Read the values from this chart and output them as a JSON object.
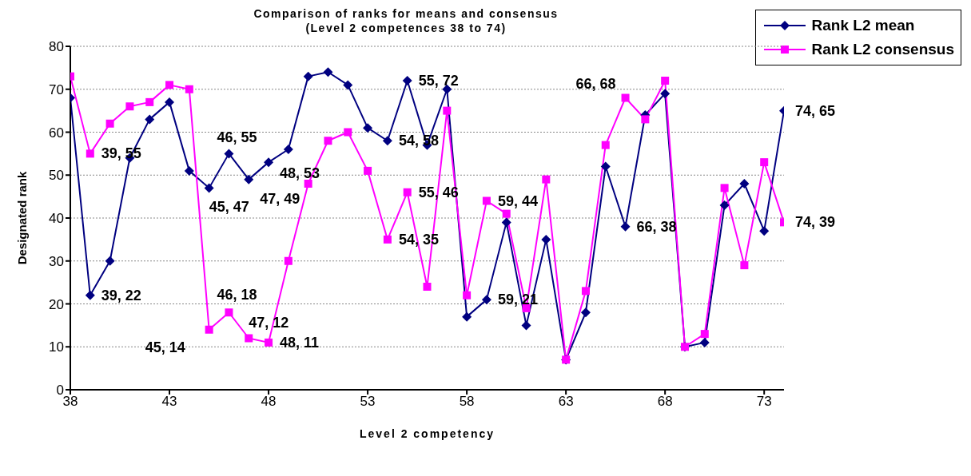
{
  "chart_data": {
    "type": "line",
    "title": "Comparison of ranks for means and consensus",
    "subtitle": "(Level 2 competences 38 to 74)",
    "xlabel": "Level 2 competency",
    "ylabel": "Designated rank",
    "x": [
      38,
      39,
      40,
      41,
      42,
      43,
      44,
      45,
      46,
      47,
      48,
      49,
      50,
      51,
      52,
      53,
      54,
      55,
      56,
      57,
      58,
      59,
      60,
      61,
      62,
      63,
      64,
      65,
      66,
      67,
      68,
      69,
      70,
      71,
      72,
      73,
      74
    ],
    "series": [
      {
        "name": "Rank L2 mean",
        "color": "#000080",
        "marker": "diamond",
        "values": [
          68,
          22,
          30,
          54,
          63,
          67,
          51,
          47,
          55,
          49,
          53,
          56,
          73,
          74,
          71,
          61,
          58,
          72,
          57,
          70,
          17,
          21,
          39,
          15,
          35,
          7,
          18,
          52,
          38,
          64,
          69,
          10,
          11,
          43,
          48,
          37,
          65
        ]
      },
      {
        "name": "Rank L2 consensus",
        "color": "#ff00ff",
        "marker": "square",
        "values": [
          73,
          55,
          62,
          66,
          67,
          71,
          70,
          14,
          18,
          12,
          11,
          30,
          48,
          58,
          60,
          51,
          35,
          46,
          24,
          65,
          22,
          44,
          41,
          19,
          49,
          7,
          23,
          57,
          68,
          63,
          72,
          10,
          13,
          47,
          29,
          53,
          39
        ]
      }
    ],
    "xlim": [
      38,
      74
    ],
    "xticks": [
      38,
      43,
      48,
      53,
      58,
      63,
      68,
      73
    ],
    "ylim": [
      0,
      80
    ],
    "yticks": [
      0,
      10,
      20,
      30,
      40,
      50,
      60,
      70,
      80
    ],
    "grid": "y",
    "legend": "top right",
    "line_style": "solid",
    "annotations": [
      {
        "text": "39, 55",
        "x": 39,
        "y": 55
      },
      {
        "text": "39, 22",
        "x": 39,
        "y": 22
      },
      {
        "text": "45, 47",
        "x": 45,
        "y": 47
      },
      {
        "text": "45, 14",
        "x": 45,
        "y": 14
      },
      {
        "text": "46, 55",
        "x": 46,
        "y": 55
      },
      {
        "text": "46, 18",
        "x": 46,
        "y": 18
      },
      {
        "text": "47, 49",
        "x": 47,
        "y": 49
      },
      {
        "text": "47, 12",
        "x": 47,
        "y": 12
      },
      {
        "text": "48, 53",
        "x": 48,
        "y": 53
      },
      {
        "text": "48, 11",
        "x": 48,
        "y": 11
      },
      {
        "text": "54, 58",
        "x": 54,
        "y": 58
      },
      {
        "text": "54, 35",
        "x": 54,
        "y": 35
      },
      {
        "text": "55, 72",
        "x": 55,
        "y": 72
      },
      {
        "text": "55, 46",
        "x": 55,
        "y": 46
      },
      {
        "text": "59, 44",
        "x": 59,
        "y": 44
      },
      {
        "text": "59, 21",
        "x": 59,
        "y": 21
      },
      {
        "text": "66, 68",
        "x": 66,
        "y": 68
      },
      {
        "text": "66, 38",
        "x": 66,
        "y": 38
      },
      {
        "text": "74, 65",
        "x": 74,
        "y": 65
      },
      {
        "text": "74, 39",
        "x": 74,
        "y": 39
      }
    ]
  }
}
